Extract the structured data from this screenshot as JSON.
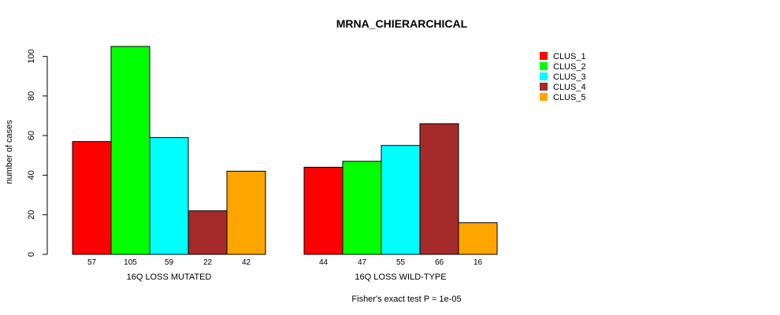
{
  "chart_data": {
    "type": "bar",
    "title": "MRNA_CHIERARCHICAL",
    "ylabel": "number of cases",
    "xlabel": "",
    "ylim": [
      0,
      105
    ],
    "yticks": [
      0,
      20,
      40,
      60,
      80,
      100
    ],
    "groups": [
      "16Q LOSS MUTATED",
      "16Q LOSS WILD-TYPE"
    ],
    "series": [
      {
        "name": "CLUS_1",
        "color": "#ff0000",
        "values": [
          57,
          44
        ]
      },
      {
        "name": "CLUS_2",
        "color": "#00ff00",
        "values": [
          105,
          47
        ]
      },
      {
        "name": "CLUS_3",
        "color": "#00ffff",
        "values": [
          59,
          55
        ]
      },
      {
        "name": "CLUS_4",
        "color": "#a52a2a",
        "values": [
          22,
          66
        ]
      },
      {
        "name": "CLUS_5",
        "color": "#ffa500",
        "values": [
          42,
          16
        ]
      }
    ],
    "legend_position": "top-right",
    "footnote": "Fisher's exact test P = 1e-05"
  }
}
